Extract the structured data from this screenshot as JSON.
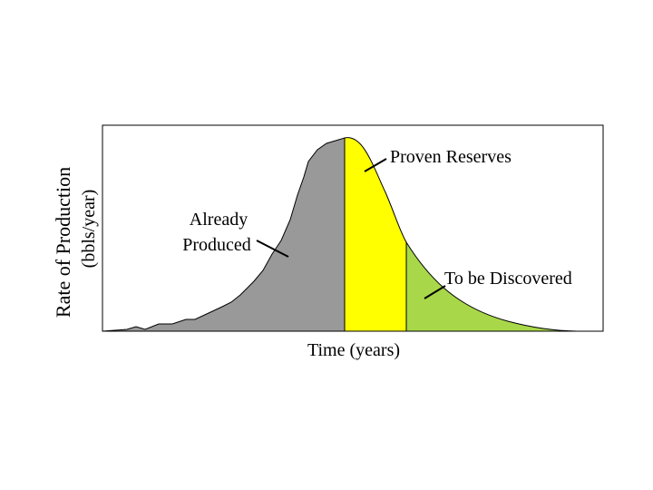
{
  "axes": {
    "y_label": "Rate of Production",
    "y_unit": "(bbls/year)",
    "x_label": "Time (years)"
  },
  "regions": [
    {
      "lines": [
        "Already",
        "Produced"
      ]
    },
    {
      "lines": [
        "Proven Reserves"
      ]
    },
    {
      "lines": [
        "To be Discovered"
      ]
    }
  ]
}
